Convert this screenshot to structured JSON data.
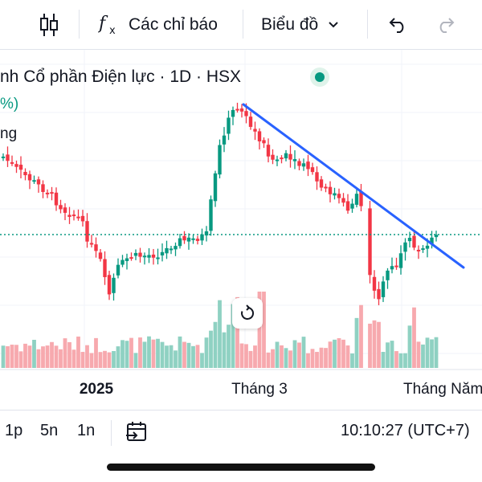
{
  "toolbar": {
    "indicators_label": "Các chỉ báo",
    "chart_type_label": "Biểu đồ"
  },
  "legend": {
    "title": "nh Cổ phần Điện lực · 1D · HSX",
    "change_fragment": "%)",
    "volume_fragment": "ng"
  },
  "chart_data": {
    "type": "candlestick",
    "x_tick_labels": [
      "2025",
      "Tháng 3",
      "Tháng Năm"
    ],
    "colors": {
      "up": "#089981",
      "down": "#f23645",
      "trendline": "#2962ff",
      "vol_up": "#8fd1c2",
      "vol_down": "#f7a9ae"
    }
  },
  "bottombar": {
    "range_1p": "1p",
    "range_5n": "5n",
    "range_1n": "1n",
    "clock": "10:10:27 (UTC+7)"
  },
  "icons": [
    "candles-icon",
    "fx-icon",
    "chevron-down-icon",
    "undo-icon",
    "redo-icon",
    "reset-icon",
    "goto-date-icon"
  ]
}
